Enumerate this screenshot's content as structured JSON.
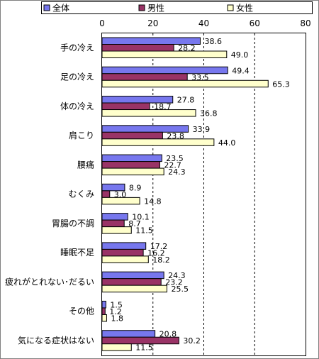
{
  "chart_data": {
    "type": "bar",
    "orientation": "horizontal",
    "categories": [
      "手の冷え",
      "足の冷え",
      "体の冷え",
      "肩こり",
      "腰痛",
      "むくみ",
      "胃腸の不調",
      "睡眠不足",
      "疲れがとれない･だるい",
      "その他",
      "気になる症状はない"
    ],
    "series": [
      {
        "name": "全体",
        "color": "#7777ee",
        "values": [
          38.6,
          49.4,
          27.8,
          33.9,
          23.5,
          8.9,
          10.1,
          17.2,
          24.3,
          1.5,
          20.8
        ]
      },
      {
        "name": "男性",
        "color": "#993366",
        "values": [
          28.2,
          33.5,
          18.7,
          23.8,
          22.7,
          3.0,
          8.7,
          16.2,
          23.2,
          1.2,
          30.2
        ]
      },
      {
        "name": "女性",
        "color": "#ffffcc",
        "values": [
          49.0,
          65.3,
          36.8,
          44.0,
          24.3,
          14.8,
          11.5,
          18.2,
          25.5,
          1.8,
          11.5
        ]
      }
    ],
    "xlim": [
      0,
      80
    ],
    "xticks": [
      "0",
      "20",
      "40",
      "60",
      "80"
    ],
    "legend_position": "top",
    "grid": "vertical-dashed"
  }
}
